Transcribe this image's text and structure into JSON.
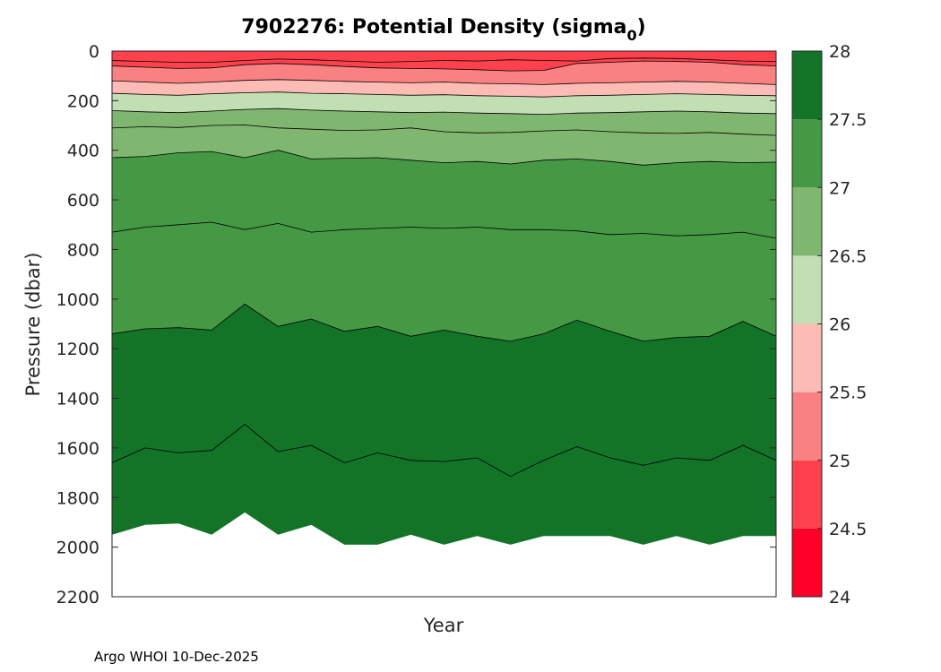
{
  "chart_data": {
    "type": "filled-contour",
    "title_main": "7902276: Potential Density (sigma",
    "title_sub": "0",
    "title_close": ")",
    "xlabel": "Year",
    "ylabel": "Pressure (dbar)",
    "ylim": [
      0,
      2200
    ],
    "y_reversed": true,
    "yticks": [
      "0",
      "200",
      "400",
      "600",
      "800",
      "1000",
      "1200",
      "1400",
      "1600",
      "1800",
      "2000",
      "2200"
    ],
    "profile_count": 21,
    "colorbar": {
      "range": [
        24,
        28
      ],
      "ticks": [
        "28",
        "27.5",
        "27",
        "26.5",
        "26",
        "25.5",
        "25",
        "24.5",
        "24"
      ],
      "bands": [
        {
          "lo": 24.0,
          "hi": 24.5,
          "color": "#ff0029"
        },
        {
          "lo": 24.5,
          "hi": 25.0,
          "color": "#ff414e"
        },
        {
          "lo": 25.0,
          "hi": 25.5,
          "color": "#fa8181"
        },
        {
          "lo": 25.5,
          "hi": 26.0,
          "color": "#fdbbb5"
        },
        {
          "lo": 26.0,
          "hi": 26.5,
          "color": "#c2dfb3"
        },
        {
          "lo": 26.5,
          "hi": 27.0,
          "color": "#7fb770"
        },
        {
          "lo": 27.0,
          "hi": 27.5,
          "color": "#459944"
        },
        {
          "lo": 27.5,
          "hi": 28.0,
          "color": "#137428"
        }
      ]
    },
    "isopycnals": [
      {
        "level": 24.5,
        "fill": "#ff414e",
        "depth_dbar": [
          38,
          42,
          45,
          45,
          38,
          32,
          35,
          40,
          45,
          42,
          38,
          40,
          35,
          38,
          40,
          30,
          28,
          30,
          35,
          40,
          42
        ]
      },
      {
        "level": 25.0,
        "fill": "#fa8181",
        "depth_dbar": [
          60,
          65,
          70,
          68,
          55,
          50,
          55,
          62,
          68,
          70,
          72,
          75,
          80,
          78,
          50,
          45,
          40,
          42,
          45,
          55,
          60
        ]
      },
      {
        "level": 25.5,
        "fill": "#fdbbb5",
        "depth_dbar": [
          120,
          125,
          130,
          125,
          118,
          115,
          118,
          122,
          125,
          128,
          125,
          130,
          132,
          135,
          130,
          128,
          125,
          122,
          125,
          130,
          135
        ]
      },
      {
        "level": 26.0,
        "fill": "#c2dfb3",
        "depth_dbar": [
          170,
          175,
          178,
          172,
          168,
          165,
          170,
          172,
          175,
          178,
          176,
          180,
          182,
          185,
          180,
          178,
          175,
          172,
          175,
          178,
          180
        ]
      },
      {
        "level": 26.5,
        "fill": "#7fb770",
        "depth_dbar": [
          240,
          245,
          248,
          242,
          235,
          232,
          238,
          242,
          245,
          248,
          246,
          250,
          252,
          255,
          250,
          248,
          245,
          242,
          245,
          250,
          252
        ]
      },
      {
        "level": 27.0,
        "fill": "#459944",
        "depth_dbar": [
          430,
          425,
          410,
          405,
          430,
          400,
          435,
          432,
          430,
          440,
          450,
          445,
          455,
          440,
          435,
          445,
          460,
          450,
          445,
          450,
          448
        ]
      },
      {
        "level": 27.5,
        "fill": "#137428",
        "depth_dbar": [
          1140,
          1120,
          1115,
          1125,
          1020,
          1110,
          1080,
          1130,
          1110,
          1150,
          1125,
          1150,
          1170,
          1140,
          1085,
          1130,
          1170,
          1155,
          1150,
          1090,
          1150
        ]
      }
    ],
    "contour_lines": [
      {
        "level": 27.0,
        "depth_dbar": [
          310,
          305,
          308,
          300,
          298,
          310,
          315,
          320,
          318,
          310,
          325,
          330,
          328,
          322,
          318,
          325,
          330,
          332,
          328,
          335,
          340
        ]
      },
      {
        "level": 27.5,
        "depth_dbar": [
          730,
          710,
          700,
          690,
          720,
          695,
          730,
          720,
          715,
          710,
          715,
          710,
          720,
          720,
          725,
          740,
          735,
          745,
          740,
          730,
          755
        ]
      },
      {
        "level": 28.0,
        "depth_dbar": [
          1660,
          1600,
          1620,
          1610,
          1505,
          1615,
          1590,
          1660,
          1620,
          1650,
          1655,
          1640,
          1715,
          1650,
          1595,
          1640,
          1670,
          1640,
          1650,
          1590,
          1650
        ]
      }
    ],
    "max_pressure_dbar": [
      1950,
      1910,
      1905,
      1950,
      1860,
      1950,
      1910,
      1990,
      1990,
      1950,
      1990,
      1955,
      1990,
      1955,
      1955,
      1955,
      1990,
      1955,
      1990,
      1955,
      1955
    ]
  },
  "footer": "Argo WHOI 10-Dec-2025",
  "colors": {
    "axis": "#262626",
    "background": "#ffffff",
    "contour": "#000000"
  }
}
